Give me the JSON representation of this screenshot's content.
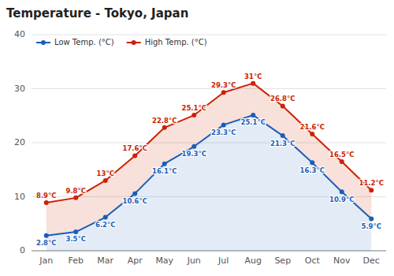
{
  "chart_data": {
    "type": "line",
    "title": "Temperature - Tokyo, Japan",
    "categories": [
      "Jan",
      "Feb",
      "Mar",
      "Apr",
      "May",
      "Jun",
      "Jul",
      "Aug",
      "Sep",
      "Oct",
      "Nov",
      "Dec"
    ],
    "series": [
      {
        "name": "Low Temp. (°C)",
        "color": "#1a5eb8",
        "values": [
          2.8,
          3.5,
          6.2,
          10.6,
          16.1,
          19.3,
          23.3,
          25.1,
          21.3,
          16.3,
          10.9,
          5.9
        ],
        "value_labels": [
          "2.8°C",
          "3.5°C",
          "6.2°C",
          "10.6°C",
          "16.1°C",
          "19.3°C",
          "23.3°C",
          "25.1°C",
          "21.3°C",
          "16.3°C",
          "10.9°C",
          "5.9°C"
        ]
      },
      {
        "name": "High Temp. (°C)",
        "color": "#cc2200",
        "values": [
          8.9,
          9.8,
          13.0,
          17.6,
          22.8,
          25.1,
          29.3,
          31.0,
          26.8,
          21.6,
          16.5,
          11.2
        ],
        "value_labels": [
          "8.9°C",
          "9.8°C",
          "13°C",
          "17.6°C",
          "22.8°C",
          "25.1°C",
          "29.3°C",
          "31°C",
          "26.8°C",
          "21.6°C",
          "16.5°C",
          "11.2°C"
        ]
      }
    ],
    "ylim": [
      0,
      40
    ],
    "yticks": [
      0,
      10,
      20,
      30,
      40
    ],
    "grid": true,
    "legend": "upper left",
    "data_labels": true
  }
}
